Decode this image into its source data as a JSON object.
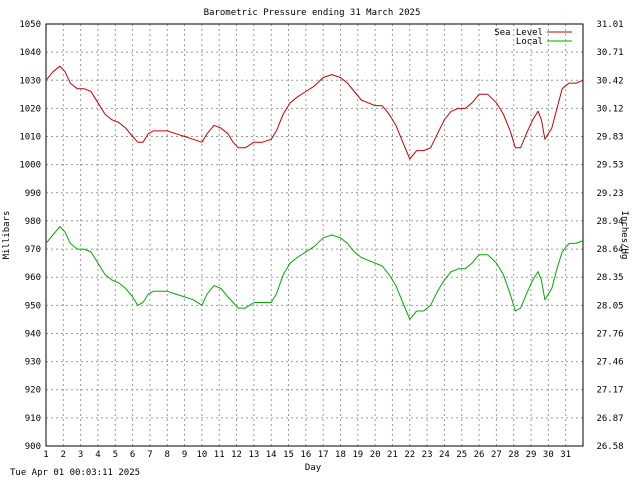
{
  "footer": {
    "timestamp": "Tue Apr 01 00:03:11 2025"
  },
  "chart_data": {
    "type": "line",
    "title": "Barometric Pressure ending 31 March 2025",
    "xlabel": "Day",
    "ylabel": "Millibars",
    "y2label": "Inches/Hg",
    "xlim": [
      1,
      32
    ],
    "ylim": [
      900,
      1050
    ],
    "y2lim": [
      26.58,
      31.01
    ],
    "x_ticks": [
      "1",
      "2",
      "3",
      "4",
      "5",
      "6",
      "7",
      "8",
      "9",
      "10",
      "11",
      "12",
      "13",
      "14",
      "15",
      "16",
      "17",
      "18",
      "19",
      "20",
      "21",
      "22",
      "23",
      "24",
      "25",
      "26",
      "27",
      "28",
      "29",
      "30",
      "31"
    ],
    "y_ticks": [
      "900",
      "910",
      "920",
      "930",
      "940",
      "950",
      "960",
      "970",
      "980",
      "990",
      "1000",
      "1010",
      "1020",
      "1030",
      "1040",
      "1050"
    ],
    "y2_ticks": [
      "26.58",
      "26.87",
      "27.17",
      "27.46",
      "27.76",
      "28.05",
      "28.35",
      "28.64",
      "28.94",
      "29.23",
      "29.53",
      "29.83",
      "30.12",
      "30.42",
      "30.71",
      "31.01"
    ],
    "grid": true,
    "legend_position": "top-right",
    "colors": {
      "sea_level": "#cc0000",
      "local": "#00aa00",
      "grid": "#999999"
    },
    "series": [
      {
        "name": "Sea Level",
        "x": [
          1,
          1.4,
          1.8,
          2.1,
          2.4,
          2.8,
          3.2,
          3.6,
          4.0,
          4.4,
          4.8,
          5.2,
          5.6,
          6.0,
          6.3,
          6.6,
          6.9,
          7.2,
          7.6,
          8.0,
          8.5,
          9.0,
          9.5,
          10.0,
          10.3,
          10.7,
          11.1,
          11.5,
          11.8,
          12.1,
          12.5,
          13.0,
          13.5,
          14.0,
          14.3,
          14.7,
          15.1,
          15.5,
          16.0,
          16.5,
          17.0,
          17.5,
          18.0,
          18.4,
          18.8,
          19.2,
          19.6,
          20.0,
          20.4,
          20.8,
          21.2,
          21.6,
          22.0,
          22.4,
          22.8,
          23.2,
          23.6,
          24.0,
          24.4,
          24.8,
          25.2,
          25.6,
          26.0,
          26.5,
          27.0,
          27.4,
          27.8,
          28.1,
          28.4,
          28.8,
          29.1,
          29.4,
          29.6,
          29.8,
          30.2,
          30.5,
          30.8,
          31.2,
          31.6,
          32.0
        ],
        "values": [
          1030,
          1033,
          1035,
          1033,
          1029,
          1027,
          1027,
          1026,
          1022,
          1018,
          1016,
          1015,
          1013,
          1010,
          1008,
          1008,
          1011,
          1012,
          1012,
          1012,
          1011,
          1010,
          1009,
          1008,
          1011,
          1014,
          1013,
          1011,
          1008,
          1006,
          1006,
          1008,
          1008,
          1009,
          1012,
          1018,
          1022,
          1024,
          1026,
          1028,
          1031,
          1032,
          1031,
          1029,
          1026,
          1023,
          1022,
          1021,
          1021,
          1018,
          1014,
          1008,
          1002,
          1005,
          1005,
          1006,
          1011,
          1016,
          1019,
          1020,
          1020,
          1022,
          1025,
          1025,
          1022,
          1018,
          1012,
          1006,
          1006,
          1012,
          1016,
          1019,
          1016,
          1009,
          1013,
          1020,
          1027,
          1029,
          1029,
          1030
        ]
      },
      {
        "name": "Local",
        "x": [
          1,
          1.4,
          1.8,
          2.1,
          2.4,
          2.8,
          3.2,
          3.6,
          4.0,
          4.4,
          4.8,
          5.2,
          5.6,
          6.0,
          6.3,
          6.6,
          6.9,
          7.2,
          7.6,
          8.0,
          8.5,
          9.0,
          9.5,
          10.0,
          10.3,
          10.7,
          11.1,
          11.5,
          11.8,
          12.1,
          12.5,
          13.0,
          13.5,
          14.0,
          14.3,
          14.7,
          15.1,
          15.5,
          16.0,
          16.5,
          17.0,
          17.5,
          18.0,
          18.4,
          18.8,
          19.2,
          19.6,
          20.0,
          20.4,
          20.8,
          21.2,
          21.6,
          22.0,
          22.4,
          22.8,
          23.2,
          23.6,
          24.0,
          24.4,
          24.8,
          25.2,
          25.6,
          26.0,
          26.5,
          27.0,
          27.4,
          27.8,
          28.1,
          28.4,
          28.8,
          29.1,
          29.4,
          29.6,
          29.8,
          30.2,
          30.5,
          30.8,
          31.2,
          31.6,
          32.0
        ],
        "values": [
          972,
          975,
          978,
          976,
          972,
          970,
          970,
          969,
          965,
          961,
          959,
          958,
          956,
          953,
          950,
          951,
          954,
          955,
          955,
          955,
          954,
          953,
          952,
          950,
          954,
          957,
          956,
          953,
          951,
          949,
          949,
          951,
          951,
          951,
          954,
          961,
          965,
          967,
          969,
          971,
          974,
          975,
          974,
          972,
          969,
          967,
          966,
          965,
          964,
          961,
          957,
          951,
          945,
          948,
          948,
          950,
          955,
          959,
          962,
          963,
          963,
          965,
          968,
          968,
          965,
          961,
          954,
          948,
          949,
          955,
          959,
          962,
          959,
          952,
          956,
          963,
          969,
          972,
          972,
          973
        ]
      }
    ]
  }
}
